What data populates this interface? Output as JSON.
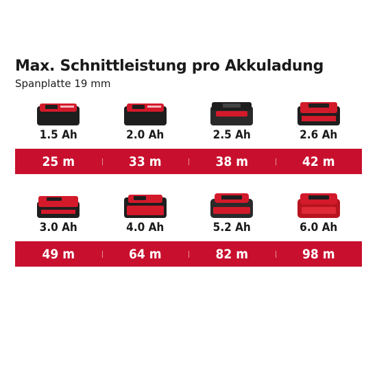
{
  "title": "Max. Schnittleistung pro Akkuladung",
  "subtitle": "Spanplatte 19 mm",
  "colors": {
    "band": "#c8102e",
    "battery_red": "#d31a2b",
    "battery_dark": "#1e1e1e"
  },
  "rows": [
    {
      "batteries": [
        {
          "capacity": "1.5 Ah",
          "cut": "25 m",
          "icon": "battery-pack-icon"
        },
        {
          "capacity": "2.0 Ah",
          "cut": "33 m",
          "icon": "battery-pack-icon"
        },
        {
          "capacity": "2.5 Ah",
          "cut": "38 m",
          "icon": "battery-pack-icon"
        },
        {
          "capacity": "2.6 Ah",
          "cut": "42 m",
          "icon": "battery-pack-icon"
        }
      ]
    },
    {
      "batteries": [
        {
          "capacity": "3.0 Ah",
          "cut": "49 m",
          "icon": "battery-pack-icon"
        },
        {
          "capacity": "4.0 Ah",
          "cut": "64 m",
          "icon": "battery-pack-icon"
        },
        {
          "capacity": "5.2 Ah",
          "cut": "82 m",
          "icon": "battery-pack-icon"
        },
        {
          "capacity": "6.0 Ah",
          "cut": "98 m",
          "icon": "battery-pack-icon"
        }
      ]
    }
  ]
}
